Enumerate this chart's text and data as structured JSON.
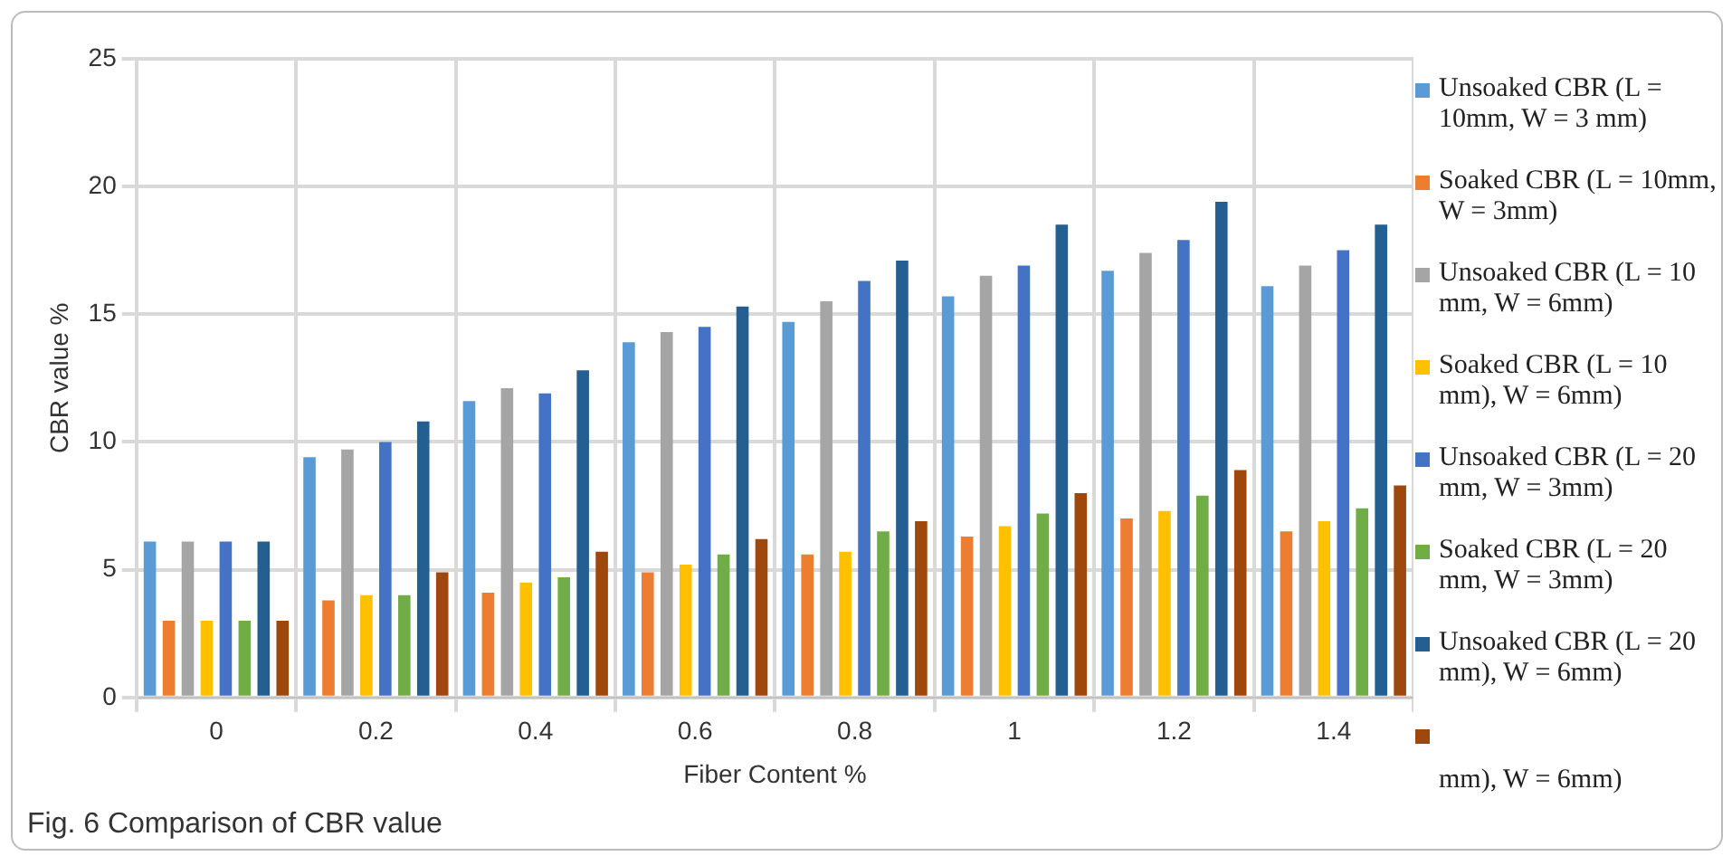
{
  "chart_data": {
    "type": "bar",
    "xlabel": "Fiber Content %",
    "ylabel": "CBR value %",
    "categories": [
      "0",
      "0.2",
      "0.4",
      "0.6",
      "0.8",
      "1",
      "1.2",
      "1.4"
    ],
    "series": [
      {
        "name": "Unsoaked CBR (L = 10mm, W = 3 mm)",
        "color": "#5b9bd5",
        "values": [
          6.1,
          9.4,
          11.6,
          13.9,
          14.7,
          15.7,
          16.7,
          16.1
        ]
      },
      {
        "name": "Soaked CBR (L = 10mm, W = 3mm)",
        "color": "#ed7d31",
        "values": [
          3.0,
          3.8,
          4.1,
          4.9,
          5.6,
          6.3,
          7.0,
          6.5
        ]
      },
      {
        "name": "Unsoaked CBR (L = 10 mm, W = 6mm)",
        "color": "#a5a5a5",
        "values": [
          6.1,
          9.7,
          12.1,
          14.3,
          15.5,
          16.5,
          17.4,
          16.9
        ]
      },
      {
        "name": "Soaked CBR (L = 10 mm), W = 6mm)",
        "color": "#ffc000",
        "values": [
          3.0,
          4.0,
          4.5,
          5.2,
          5.7,
          6.7,
          7.3,
          6.9
        ]
      },
      {
        "name": "Unsoaked CBR (L = 20 mm, W = 3mm)",
        "color": "#4472c4",
        "values": [
          6.1,
          10.0,
          11.9,
          14.5,
          16.3,
          16.9,
          17.9,
          17.5
        ]
      },
      {
        "name": "Soaked CBR (L = 20 mm, W = 3mm)",
        "color": "#70ad47",
        "values": [
          3.0,
          4.0,
          4.7,
          5.6,
          6.5,
          7.2,
          7.9,
          7.4
        ]
      },
      {
        "name": "Unsoaked CBR (L = 20 mm), W = 6mm)",
        "color": "#255e91",
        "values": [
          6.1,
          10.8,
          12.8,
          15.3,
          17.1,
          18.5,
          19.4,
          18.5
        ]
      },
      {
        "name": "mm), W = 6mm)",
        "color": "#9e480e",
        "values": [
          3.0,
          4.9,
          5.7,
          6.2,
          6.9,
          8.0,
          8.9,
          8.3
        ]
      }
    ],
    "ylim": [
      0,
      25
    ],
    "yticks": [
      0,
      5,
      10,
      15,
      20,
      25
    ],
    "grid": true,
    "legend": "right",
    "annotations": [
      "Fig. 6  Comparison of CBR value"
    ]
  }
}
